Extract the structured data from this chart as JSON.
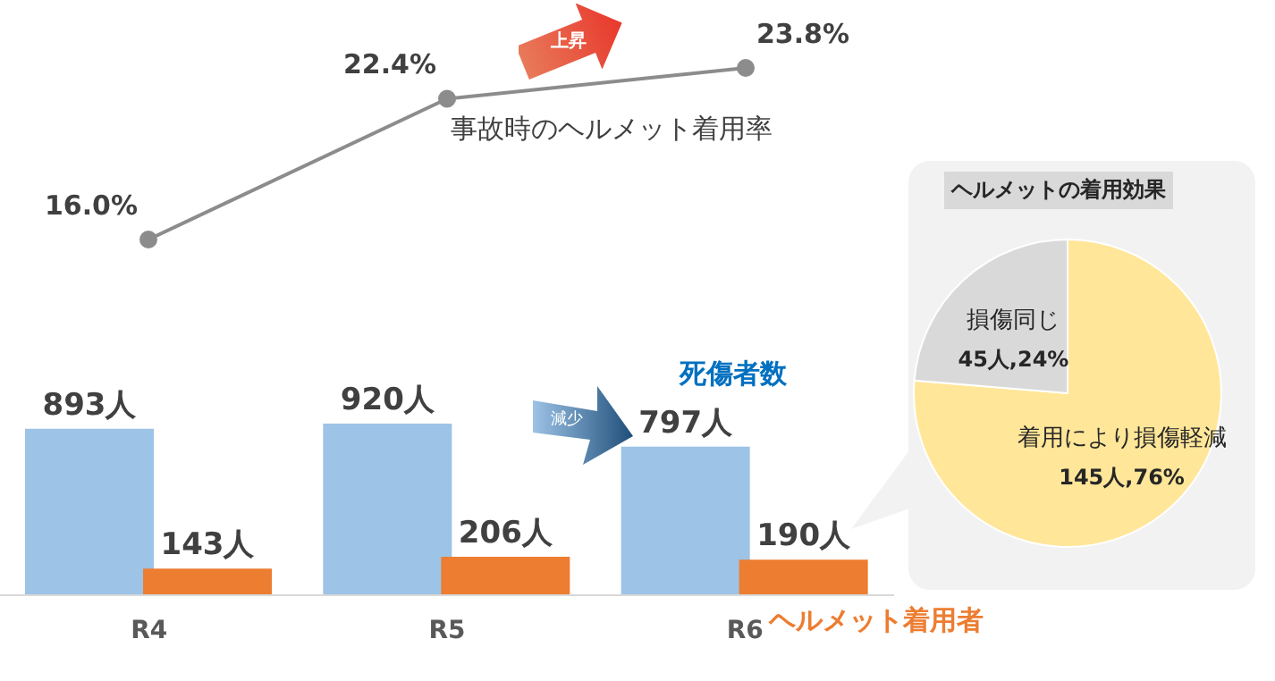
{
  "chart_data": [
    {
      "type": "line",
      "categories": [
        null,
        null,
        null
      ],
      "series": [
        {
          "name": "事故時のヘルメット着用率",
          "color": "#8c8c8c",
          "values": [
            16.0,
            22.4,
            23.8
          ],
          "value_labels": [
            "16.0%",
            "22.4%",
            "23.8%"
          ]
        }
      ],
      "marker": "circle",
      "annotations": [
        "上昇"
      ],
      "tick_labels": false
    },
    {
      "type": "bar",
      "categories": [
        "R4",
        "R5",
        "R6"
      ],
      "series": [
        {
          "name": "死傷者数",
          "color": "#9dc3e6",
          "values": [
            893,
            920,
            797
          ],
          "value_labels": [
            "893人",
            "920人",
            "797人"
          ]
        },
        {
          "name": "ヘルメット着用者",
          "color": "#ed7d31",
          "values": [
            143,
            206,
            190
          ],
          "value_labels": [
            "143人",
            "206人",
            "190人"
          ]
        }
      ],
      "annotations": [
        "減少"
      ],
      "tick_labels": "x"
    },
    {
      "type": "pie",
      "title": "ヘルメットの着用効果",
      "categories": [
        "着用により損傷軽減",
        "損傷同じ"
      ],
      "values": [
        145,
        45
      ],
      "colors": [
        "#ffe699",
        "#d9d9d9"
      ],
      "value_labels": [
        "145人,76%",
        "45人,24%"
      ]
    }
  ]
}
